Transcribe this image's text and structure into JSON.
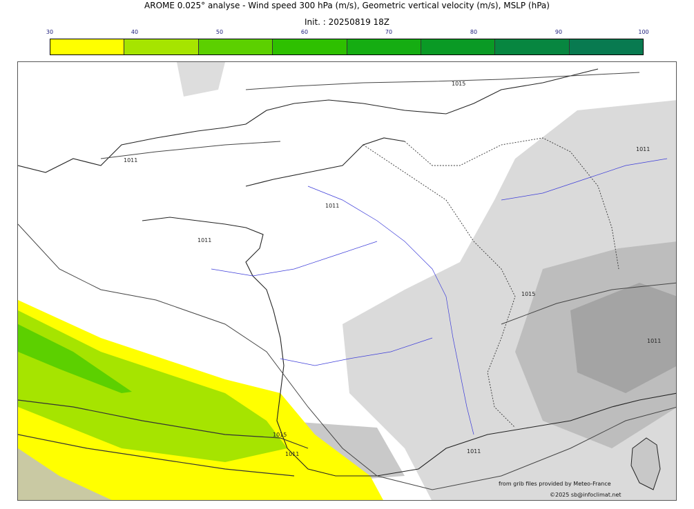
{
  "header": {
    "title": "AROME 0.025° analyse - Wind speed 300 hPa (m/s), Geometric vertical velocity (m/s), MSLP (hPa)",
    "subtitle": "Init. : 20250819 18Z"
  },
  "colorbar": {
    "ticks": [
      "30",
      "40",
      "50",
      "60",
      "70",
      "80",
      "90",
      "100"
    ],
    "colors": [
      "#ffff00",
      "#a6e400",
      "#5cd000",
      "#2ec000",
      "#15ad12",
      "#0a9a25",
      "#078640",
      "#087a50"
    ]
  },
  "isobar_labels": [
    {
      "text": "1015"
    },
    {
      "text": "1011"
    },
    {
      "text": "1011"
    },
    {
      "text": "1011"
    },
    {
      "text": "1011"
    },
    {
      "text": "1015"
    },
    {
      "text": "1011"
    },
    {
      "text": "1015"
    },
    {
      "text": "1011"
    },
    {
      "text": "1011"
    }
  ],
  "credits": {
    "source": "from grib files provided by Meteo-France",
    "copyright": "©2025 sb@infoclimat.net"
  }
}
